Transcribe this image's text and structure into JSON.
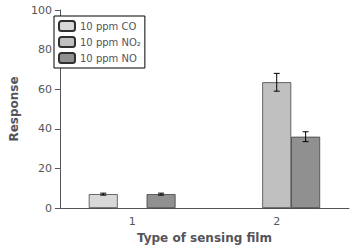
{
  "chart_data": {
    "type": "bar",
    "categories": [
      "1",
      "2"
    ],
    "series": [
      {
        "name": "10 ppm CO",
        "color": "#d8d8d8",
        "values": [
          7.0,
          null
        ],
        "errors": [
          0.5,
          null
        ]
      },
      {
        "name": "10 ppm NO₂",
        "color": "#c0c0c0",
        "values": [
          null,
          63.5
        ],
        "errors": [
          null,
          4.5
        ]
      },
      {
        "name": "10 ppm NO",
        "color": "#909090",
        "values": [
          7.0,
          36.0
        ],
        "errors": [
          0.5,
          2.5
        ]
      }
    ],
    "xlabel": "Type of sensing film",
    "ylabel": "Response",
    "ylim": [
      0,
      100
    ],
    "yticks": [
      0,
      20,
      40,
      60,
      80,
      100
    ],
    "grid": false,
    "legend": "upper left"
  }
}
